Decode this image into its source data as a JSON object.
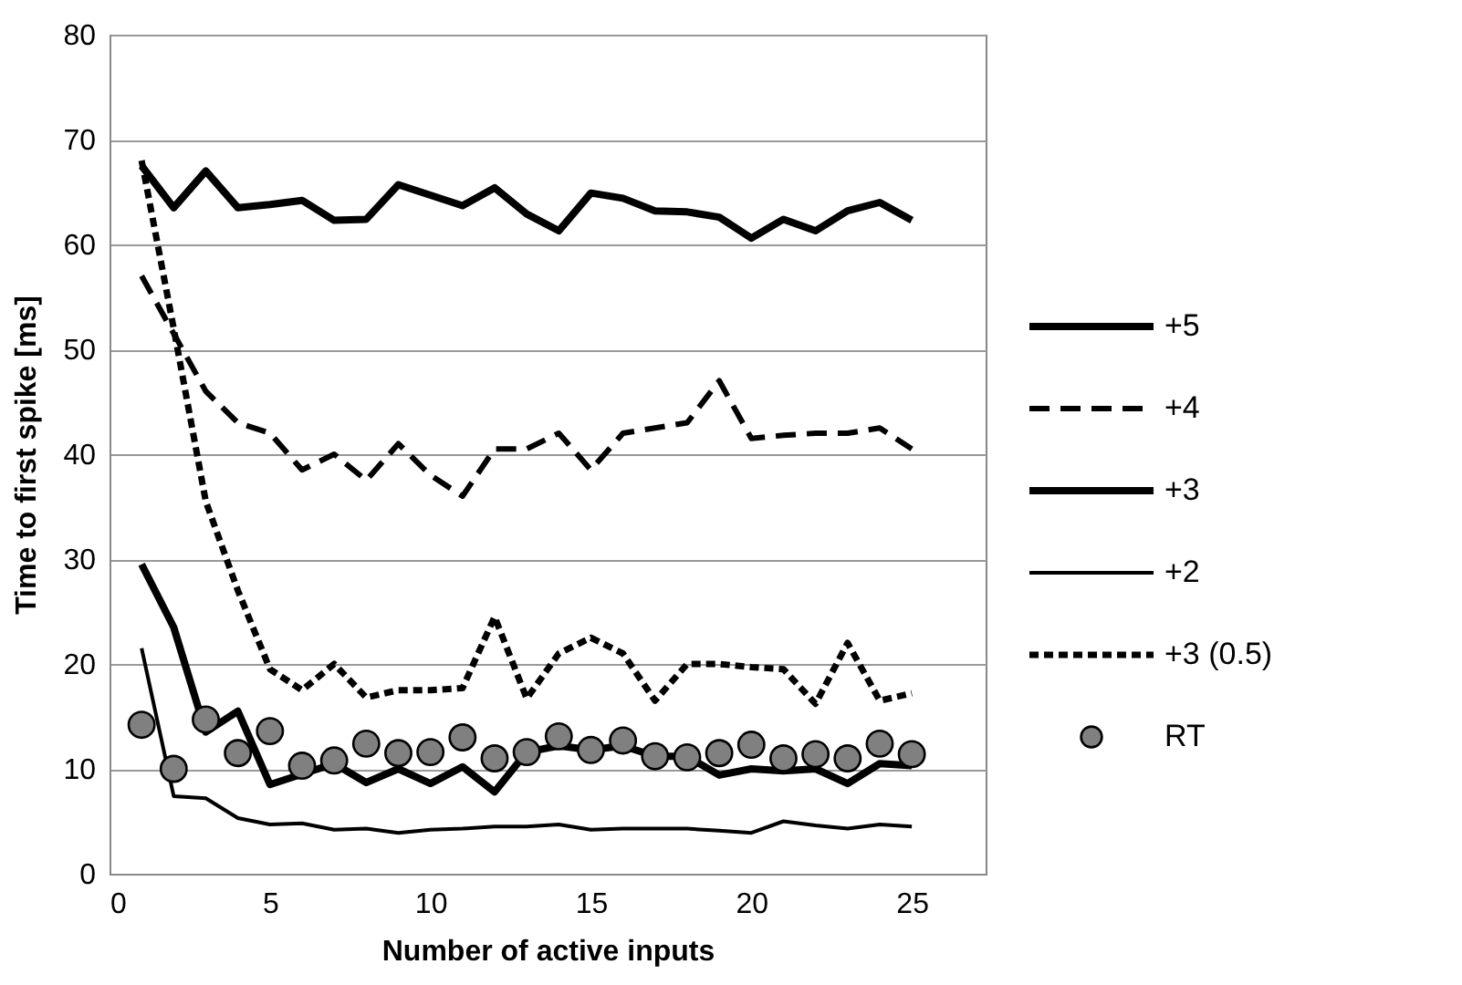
{
  "chart_data": {
    "type": "line",
    "xlabel": "Number of active inputs",
    "ylabel": "Time to first spike [ms]",
    "x": [
      1,
      2,
      3,
      4,
      5,
      6,
      7,
      8,
      9,
      10,
      11,
      12,
      13,
      14,
      15,
      16,
      17,
      18,
      19,
      20,
      21,
      22,
      23,
      24,
      25
    ],
    "xlim": [
      0,
      27.3
    ],
    "xticks": [
      0,
      5,
      10,
      15,
      20,
      25
    ],
    "ylim": [
      0,
      80
    ],
    "yticks": [
      0,
      10,
      20,
      30,
      40,
      50,
      60,
      70,
      80
    ],
    "grid": "y",
    "legend": "right",
    "series": [
      {
        "name": "+5",
        "color": "#000000",
        "line_style": "solid",
        "values": [
          67.5,
          63.5,
          67,
          63.5,
          63.8,
          64.2,
          62.3,
          62.4,
          65.7,
          64.7,
          63.7,
          65.4,
          62.9,
          61.3,
          64.9,
          64.4,
          63.2,
          63.1,
          62.6,
          60.6,
          62.4,
          61.3,
          63.2,
          64,
          62.3
        ]
      },
      {
        "name": "+4",
        "color": "#000000",
        "line_style": "dashed",
        "values": [
          57,
          51.5,
          46,
          43,
          42,
          38.5,
          40,
          37.5,
          41,
          38,
          36,
          40.5,
          40.5,
          42,
          38.5,
          42,
          42.5,
          43,
          47,
          41.5,
          41.8,
          42,
          42,
          42.5,
          40.5
        ]
      },
      {
        "name": "+3",
        "color": "#000000",
        "line_style": "solid",
        "values": [
          29.5,
          23.5,
          13.5,
          15.5,
          8.5,
          9.5,
          10.5,
          8.7,
          10,
          8.6,
          10.2,
          7.8,
          11.6,
          12.2,
          11.8,
          12.2,
          11.2,
          11.2,
          9.4,
          10,
          9.8,
          10,
          8.6,
          10.5,
          10.3
        ]
      },
      {
        "name": "+2",
        "color": "#000000",
        "line_style": "solid",
        "values": [
          21.5,
          7.4,
          7.2,
          5.3,
          4.7,
          4.8,
          4.2,
          4.3,
          3.9,
          4.2,
          4.3,
          4.5,
          4.5,
          4.7,
          4.2,
          4.3,
          4.3,
          4.3,
          4.1,
          3.9,
          5,
          4.6,
          4.3,
          4.7,
          4.5
        ]
      },
      {
        "name": "+3 (0.5)",
        "color": "#000000",
        "line_style": "dotted",
        "values": [
          68,
          52,
          35.5,
          27,
          19.5,
          17.5,
          20,
          16.8,
          17.5,
          17.5,
          17.7,
          24.5,
          16.7,
          21,
          22.5,
          21,
          16.5,
          20,
          20,
          19.7,
          19.5,
          16.2,
          22,
          16.5,
          17.2
        ]
      },
      {
        "name": "RT",
        "type": "scatter",
        "marker": "circle",
        "color": "#808080",
        "values": [
          14.2,
          10,
          14.7,
          11.5,
          13.6,
          10.3,
          10.8,
          12.4,
          11.5,
          11.6,
          13,
          11,
          11.6,
          13.1,
          11.8,
          12.7,
          11.2,
          11.1,
          11.5,
          12.3,
          11,
          11.4,
          11,
          12.4,
          11.4
        ]
      }
    ]
  }
}
